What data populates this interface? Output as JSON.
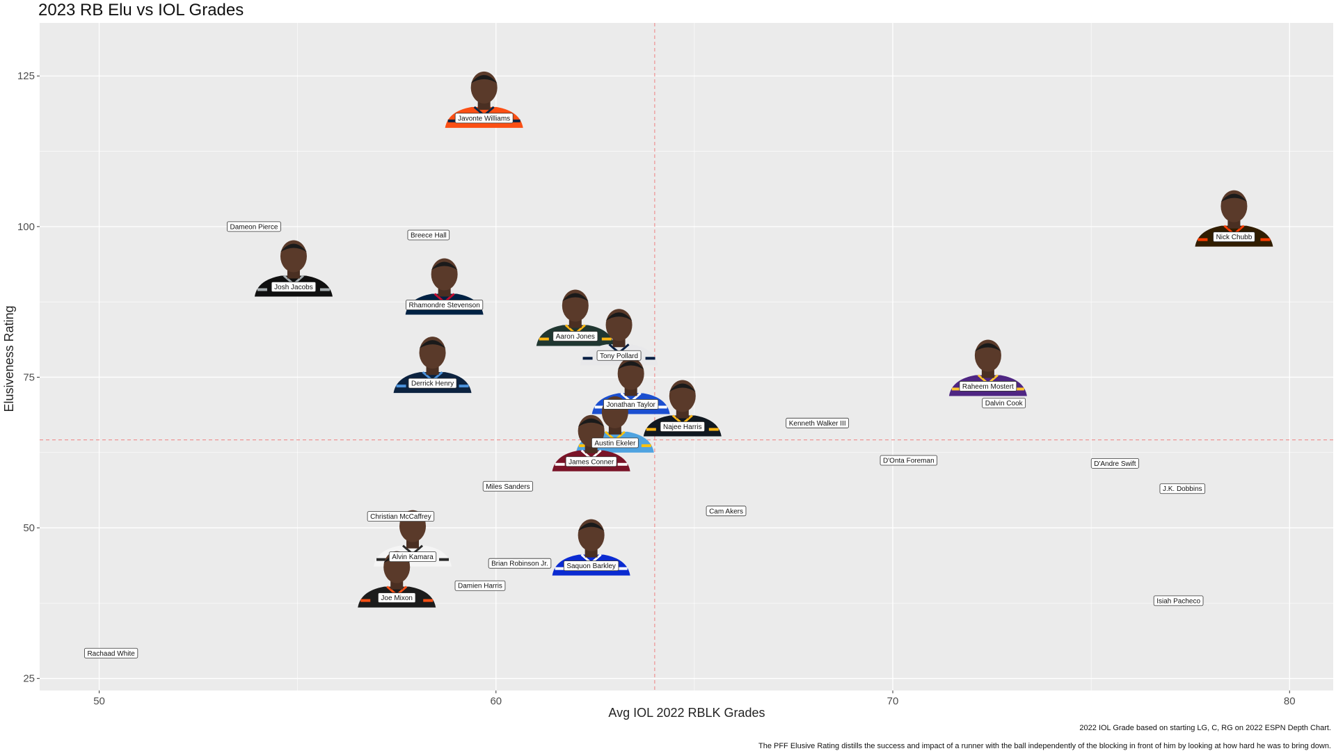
{
  "chart_data": {
    "type": "scatter",
    "title": "2023 RB Elu vs IOL Grades",
    "xlabel": "Avg IOL 2022 RBLK Grades",
    "ylabel": "Elusiveness Rating",
    "xlim": [
      48.5,
      81.1
    ],
    "ylim": [
      23.0,
      133.8
    ],
    "x_ticks": [
      50,
      60,
      70,
      80
    ],
    "y_ticks": [
      25,
      50,
      75,
      100,
      125
    ],
    "x_tick_labels": [
      "50",
      "60",
      "70",
      "80"
    ],
    "y_tick_labels": [
      "25",
      "50",
      "75",
      "100",
      "125"
    ],
    "grid": true,
    "reference_lines": {
      "x": 64.0,
      "y": 64.6,
      "color": "#f08080"
    },
    "caption_lines": [
      "2022 IOL Grade based on starting LG, C, RG on 2022 ESPN Depth Chart.",
      "The PFF Elusive Rating distills the success and impact of a runner with the ball independently of the blocking in front of him by looking at how hard he was to bring down."
    ],
    "points": [
      {
        "name": "Javonte Williams",
        "x": 59.7,
        "y": 118.0,
        "photo": "broncos"
      },
      {
        "name": "Dameon Pierce",
        "x": 53.9,
        "y": 100.0,
        "photo": null
      },
      {
        "name": "Breece Hall",
        "x": 58.3,
        "y": 98.6,
        "photo": null
      },
      {
        "name": "Nick Chubb",
        "x": 78.6,
        "y": 98.3,
        "photo": "browns"
      },
      {
        "name": "Josh Jacobs",
        "x": 54.9,
        "y": 90.0,
        "photo": "raiders"
      },
      {
        "name": "Rhamondre Stevenson",
        "x": 58.7,
        "y": 87.0,
        "photo": "patriots"
      },
      {
        "name": "Aaron Jones",
        "x": 62.0,
        "y": 81.8,
        "photo": "packers"
      },
      {
        "name": "Tony Pollard",
        "x": 63.1,
        "y": 78.6,
        "photo": "cowboys"
      },
      {
        "name": "Derrick Henry",
        "x": 58.4,
        "y": 74.0,
        "photo": "titans"
      },
      {
        "name": "Raheem Mostert",
        "x": 72.4,
        "y": 73.5,
        "photo": "vikings"
      },
      {
        "name": "Dalvin Cook",
        "x": 72.8,
        "y": 70.7,
        "photo": null
      },
      {
        "name": "Jonathan Taylor",
        "x": 63.4,
        "y": 70.5,
        "photo": "colts"
      },
      {
        "name": "Kenneth Walker III",
        "x": 68.1,
        "y": 67.4,
        "photo": null
      },
      {
        "name": "Najee Harris",
        "x": 64.7,
        "y": 66.8,
        "photo": "steelers"
      },
      {
        "name": "Austin Ekeler",
        "x": 63.0,
        "y": 64.1,
        "photo": "chargers"
      },
      {
        "name": "D'Onta Foreman",
        "x": 70.4,
        "y": 61.2,
        "photo": null
      },
      {
        "name": "D'Andre Swift",
        "x": 75.6,
        "y": 60.7,
        "photo": null
      },
      {
        "name": "James Conner",
        "x": 62.4,
        "y": 61.0,
        "photo": "cardinals"
      },
      {
        "name": "Miles Sanders",
        "x": 60.3,
        "y": 56.9,
        "photo": null
      },
      {
        "name": "J.K. Dobbins",
        "x": 77.3,
        "y": 56.5,
        "photo": null
      },
      {
        "name": "Cam Akers",
        "x": 65.8,
        "y": 52.8,
        "photo": null
      },
      {
        "name": "Christian McCaffrey",
        "x": 57.6,
        "y": 51.9,
        "photo": null
      },
      {
        "name": "Brian Robinson Jr.",
        "x": 60.6,
        "y": 44.1,
        "photo": null
      },
      {
        "name": "Alvin Kamara",
        "x": 57.9,
        "y": 45.2,
        "photo": "saints"
      },
      {
        "name": "Saquon Barkley",
        "x": 62.4,
        "y": 43.7,
        "photo": "giants"
      },
      {
        "name": "Damien Harris",
        "x": 59.6,
        "y": 40.4,
        "photo": null
      },
      {
        "name": "Isiah Pacheco",
        "x": 77.2,
        "y": 37.9,
        "photo": null
      },
      {
        "name": "Joe Mixon",
        "x": 57.5,
        "y": 38.4,
        "photo": "bengals"
      },
      {
        "name": "Rachaad White",
        "x": 50.3,
        "y": 29.2,
        "photo": null
      }
    ],
    "photo_colors": {
      "broncos": {
        "jersey": "#fb4f14",
        "trim": "#0a2343"
      },
      "browns": {
        "jersey": "#311d00",
        "trim": "#ff3c00"
      },
      "raiders": {
        "jersey": "#101010",
        "trim": "#a5acaf"
      },
      "patriots": {
        "jersey": "#002244",
        "trim": "#c60c30"
      },
      "packers": {
        "jersey": "#203731",
        "trim": "#ffb612"
      },
      "cowboys": {
        "jersey": "#e8e8ea",
        "trim": "#041e42"
      },
      "titans": {
        "jersey": "#0c2340",
        "trim": "#4b92db"
      },
      "vikings": {
        "jersey": "#4f2683",
        "trim": "#ffc62f"
      },
      "colts": {
        "jersey": "#1b4fd0",
        "trim": "#ffffff"
      },
      "steelers": {
        "jersey": "#101820",
        "trim": "#ffb612"
      },
      "chargers": {
        "jersey": "#4fa3e0",
        "trim": "#ffc20e"
      },
      "cardinals": {
        "jersey": "#7a1428",
        "trim": "#ffffff"
      },
      "saints": {
        "jersey": "#f5f5f5",
        "trim": "#2a2a2a"
      },
      "giants": {
        "jersey": "#0b2bd1",
        "trim": "#ffffff"
      },
      "bengals": {
        "jersey": "#1c1c1c",
        "trim": "#fb4f14"
      }
    },
    "panel_background": "#ebebeb",
    "grid_color": "#ffffff"
  }
}
